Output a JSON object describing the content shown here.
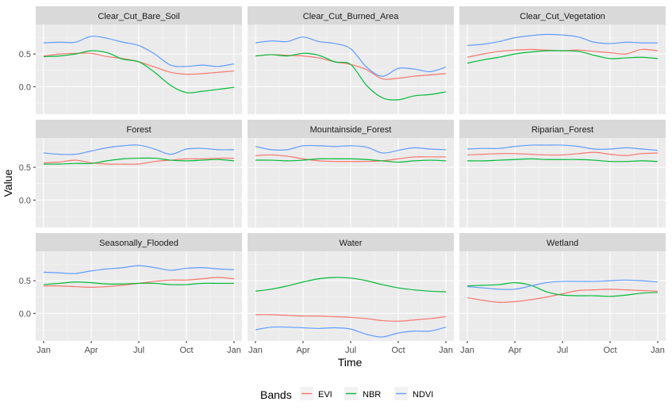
{
  "chart_data": {
    "type": "line",
    "facet_layout": "3x3 grid, shared axes",
    "xlabel": "Time",
    "ylabel": "Value",
    "x_ticks": [
      "Jan",
      "Apr",
      "Jul",
      "Oct",
      "Jan"
    ],
    "x_tick_months": [
      0,
      3,
      6,
      9,
      12
    ],
    "xlim": [
      0,
      12
    ],
    "ylim": [
      -0.42,
      0.95
    ],
    "y_ticks": [
      0.0,
      0.5
    ],
    "y_tick_labels": [
      "0.0",
      "0.5"
    ],
    "grid": true,
    "legend": {
      "title": "Bands",
      "position": "bottom"
    },
    "series_colors": {
      "EVI": "#F8766D",
      "NBR": "#00BA38",
      "NDVI": "#619CFF"
    },
    "x": [
      0,
      1,
      2,
      3,
      4,
      5,
      6,
      7,
      8,
      9,
      10,
      11,
      12
    ],
    "panels": [
      {
        "title": "Clear_Cut_Bare_Soil",
        "series": [
          {
            "name": "EVI",
            "values": [
              0.47,
              0.5,
              0.51,
              0.51,
              0.46,
              0.43,
              0.38,
              0.3,
              0.22,
              0.19,
              0.2,
              0.22,
              0.24
            ]
          },
          {
            "name": "NBR",
            "values": [
              0.46,
              0.47,
              0.5,
              0.55,
              0.52,
              0.42,
              0.38,
              0.22,
              0.02,
              -0.09,
              -0.07,
              -0.04,
              -0.01
            ]
          },
          {
            "name": "NDVI",
            "values": [
              0.67,
              0.68,
              0.68,
              0.77,
              0.74,
              0.68,
              0.63,
              0.5,
              0.33,
              0.31,
              0.33,
              0.31,
              0.35
            ]
          }
        ]
      },
      {
        "title": "Clear_Cut_Burned_Area",
        "series": [
          {
            "name": "EVI",
            "values": [
              0.47,
              0.49,
              0.48,
              0.47,
              0.44,
              0.38,
              0.34,
              0.26,
              0.12,
              0.13,
              0.16,
              0.18,
              0.2
            ]
          },
          {
            "name": "NBR",
            "values": [
              0.47,
              0.49,
              0.47,
              0.51,
              0.48,
              0.38,
              0.34,
              0.02,
              -0.17,
              -0.2,
              -0.14,
              -0.12,
              -0.08
            ]
          },
          {
            "name": "NDVI",
            "values": [
              0.67,
              0.7,
              0.69,
              0.76,
              0.69,
              0.66,
              0.58,
              0.3,
              0.16,
              0.28,
              0.27,
              0.23,
              0.3
            ]
          }
        ]
      },
      {
        "title": "Clear_Cut_Vegetation",
        "series": [
          {
            "name": "EVI",
            "values": [
              0.45,
              0.5,
              0.54,
              0.56,
              0.57,
              0.56,
              0.55,
              0.56,
              0.54,
              0.52,
              0.5,
              0.57,
              0.55
            ]
          },
          {
            "name": "NBR",
            "values": [
              0.36,
              0.41,
              0.45,
              0.5,
              0.53,
              0.55,
              0.55,
              0.54,
              0.48,
              0.43,
              0.44,
              0.45,
              0.43
            ]
          },
          {
            "name": "NDVI",
            "values": [
              0.63,
              0.65,
              0.69,
              0.75,
              0.78,
              0.8,
              0.79,
              0.76,
              0.68,
              0.66,
              0.68,
              0.67,
              0.67
            ]
          }
        ]
      },
      {
        "title": "Forest",
        "series": [
          {
            "name": "EVI",
            "values": [
              0.57,
              0.58,
              0.61,
              0.57,
              0.55,
              0.55,
              0.55,
              0.59,
              0.61,
              0.63,
              0.63,
              0.64,
              0.64
            ]
          },
          {
            "name": "NBR",
            "values": [
              0.55,
              0.55,
              0.56,
              0.56,
              0.6,
              0.63,
              0.64,
              0.64,
              0.61,
              0.6,
              0.61,
              0.62,
              0.6
            ]
          },
          {
            "name": "NDVI",
            "values": [
              0.72,
              0.7,
              0.7,
              0.75,
              0.8,
              0.83,
              0.84,
              0.78,
              0.7,
              0.78,
              0.79,
              0.77,
              0.77
            ]
          }
        ]
      },
      {
        "title": "Mountainside_Forest",
        "series": [
          {
            "name": "EVI",
            "values": [
              0.68,
              0.69,
              0.67,
              0.63,
              0.6,
              0.59,
              0.59,
              0.59,
              0.6,
              0.63,
              0.66,
              0.66,
              0.66
            ]
          },
          {
            "name": "NBR",
            "values": [
              0.61,
              0.61,
              0.6,
              0.61,
              0.63,
              0.63,
              0.63,
              0.62,
              0.6,
              0.58,
              0.6,
              0.61,
              0.6
            ]
          },
          {
            "name": "NDVI",
            "values": [
              0.82,
              0.77,
              0.77,
              0.83,
              0.83,
              0.82,
              0.83,
              0.81,
              0.72,
              0.76,
              0.8,
              0.78,
              0.77
            ]
          }
        ]
      },
      {
        "title": "Riparian_Forest",
        "series": [
          {
            "name": "EVI",
            "values": [
              0.69,
              0.7,
              0.71,
              0.71,
              0.7,
              0.69,
              0.69,
              0.71,
              0.73,
              0.7,
              0.68,
              0.71,
              0.72
            ]
          },
          {
            "name": "NBR",
            "values": [
              0.6,
              0.6,
              0.61,
              0.62,
              0.63,
              0.62,
              0.62,
              0.62,
              0.61,
              0.59,
              0.59,
              0.6,
              0.59
            ]
          },
          {
            "name": "NDVI",
            "values": [
              0.78,
              0.79,
              0.79,
              0.82,
              0.84,
              0.84,
              0.84,
              0.82,
              0.78,
              0.78,
              0.8,
              0.78,
              0.76
            ]
          }
        ]
      },
      {
        "title": "Seasonally_Flooded",
        "series": [
          {
            "name": "EVI",
            "values": [
              0.42,
              0.42,
              0.41,
              0.4,
              0.41,
              0.43,
              0.46,
              0.49,
              0.51,
              0.51,
              0.53,
              0.55,
              0.53
            ]
          },
          {
            "name": "NBR",
            "values": [
              0.44,
              0.46,
              0.48,
              0.47,
              0.45,
              0.45,
              0.46,
              0.46,
              0.44,
              0.44,
              0.46,
              0.46,
              0.46
            ]
          },
          {
            "name": "NDVI",
            "values": [
              0.63,
              0.62,
              0.61,
              0.65,
              0.68,
              0.7,
              0.73,
              0.7,
              0.66,
              0.69,
              0.7,
              0.68,
              0.67
            ]
          }
        ]
      },
      {
        "title": "Water",
        "series": [
          {
            "name": "EVI",
            "values": [
              -0.02,
              -0.02,
              -0.03,
              -0.04,
              -0.04,
              -0.05,
              -0.06,
              -0.08,
              -0.11,
              -0.12,
              -0.1,
              -0.08,
              -0.05
            ]
          },
          {
            "name": "NBR",
            "values": [
              0.34,
              0.37,
              0.42,
              0.48,
              0.53,
              0.55,
              0.54,
              0.5,
              0.44,
              0.39,
              0.36,
              0.34,
              0.33
            ]
          },
          {
            "name": "NDVI",
            "values": [
              -0.25,
              -0.21,
              -0.21,
              -0.22,
              -0.23,
              -0.22,
              -0.24,
              -0.32,
              -0.36,
              -0.3,
              -0.27,
              -0.27,
              -0.21
            ]
          }
        ]
      },
      {
        "title": "Wetland",
        "series": [
          {
            "name": "EVI",
            "values": [
              0.24,
              0.2,
              0.17,
              0.18,
              0.21,
              0.25,
              0.3,
              0.35,
              0.36,
              0.37,
              0.36,
              0.35,
              0.34
            ]
          },
          {
            "name": "NBR",
            "values": [
              0.42,
              0.43,
              0.44,
              0.47,
              0.43,
              0.33,
              0.28,
              0.27,
              0.27,
              0.26,
              0.28,
              0.31,
              0.32
            ]
          },
          {
            "name": "NDVI",
            "values": [
              0.41,
              0.39,
              0.37,
              0.37,
              0.42,
              0.47,
              0.49,
              0.49,
              0.49,
              0.5,
              0.51,
              0.5,
              0.48
            ]
          }
        ]
      }
    ]
  }
}
